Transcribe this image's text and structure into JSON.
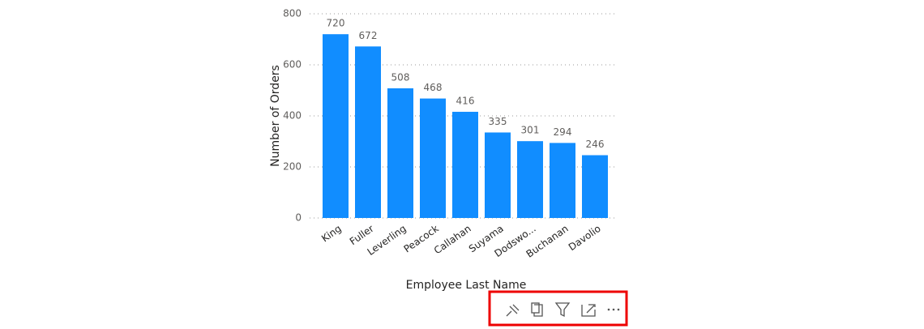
{
  "chart_data": {
    "type": "bar",
    "x_label": "Employee Last Name",
    "y_label": "Number of Orders",
    "categories": [
      "King",
      "Fuller",
      "Leverling",
      "Peacock",
      "Callahan",
      "Suyama",
      "Dodswo...",
      "Buchanan",
      "Davolio"
    ],
    "values": [
      720,
      672,
      508,
      468,
      416,
      335,
      301,
      294,
      246
    ],
    "color": "#118dff",
    "ylim": [
      0,
      800
    ],
    "yticks": [
      0,
      200,
      400,
      600,
      800
    ],
    "grid": true
  }
}
